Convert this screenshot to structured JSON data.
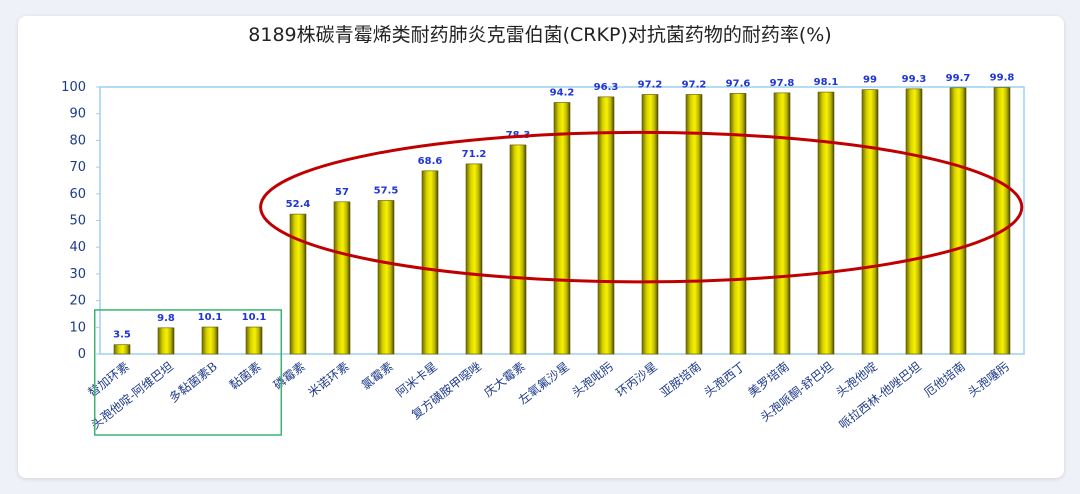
{
  "chart_data": {
    "type": "bar",
    "title": "8189株碳青霉烯类耐药肺炎克雷伯菌(CRKP)对抗菌药物的耐药率(%)",
    "xlabel": "",
    "ylabel": "",
    "ylim": [
      0,
      100
    ],
    "yticks": [
      0,
      10,
      20,
      30,
      40,
      50,
      60,
      70,
      80,
      90,
      100
    ],
    "categories": [
      "替加环素",
      "头孢他啶-阿维巴坦",
      "多黏菌素B",
      "黏菌素",
      "磷霉素",
      "米诺环素",
      "氯霉素",
      "阿米卡星",
      "复方磺胺甲噁唑",
      "庆大霉素",
      "左氧氟沙星",
      "头孢吡肟",
      "环丙沙星",
      "亚胺培南",
      "头孢西丁",
      "美罗培南",
      "头孢哌酮-舒巴坦",
      "头孢他啶",
      "哌拉西林-他唑巴坦",
      "厄他培南",
      "头孢噻肟"
    ],
    "values": [
      3.5,
      9.8,
      10.1,
      10.1,
      52.4,
      57,
      57.5,
      68.6,
      71.2,
      78.3,
      94.2,
      96.3,
      97.2,
      97.2,
      97.6,
      97.8,
      98.1,
      99,
      99.3,
      99.7,
      99.8
    ],
    "value_labels": [
      "3.5",
      "9.8",
      "10.1",
      "10.1",
      "52.4",
      "57",
      "57.5",
      "68.6",
      "71.2",
      "78.3",
      "94.2",
      "96.3",
      "97.2",
      "97.2",
      "97.6",
      "97.8",
      "98.1",
      "99",
      "99.3",
      "99.7",
      "99.8"
    ],
    "grid": false,
    "bar_color": "#e6e000",
    "bar_edge_color": "#5a5600",
    "annotations": [
      {
        "type": "rectangle",
        "color": "#3cb371",
        "covers_categories": [
          "替加环素",
          "头孢他啶-阿维巴坦",
          "多黏菌素B",
          "黏菌素"
        ]
      },
      {
        "type": "ellipse",
        "color": "#c00000",
        "covers_categories_from": "磷霉素",
        "covers_categories_to": "头孢噻肟"
      }
    ]
  },
  "colors": {
    "axis_frame": "#9ed0f0",
    "tick_text": "#1f3b8a",
    "data_label": "#1f35d6",
    "green_box": "#3cb371",
    "red_ellipse": "#c00000"
  }
}
